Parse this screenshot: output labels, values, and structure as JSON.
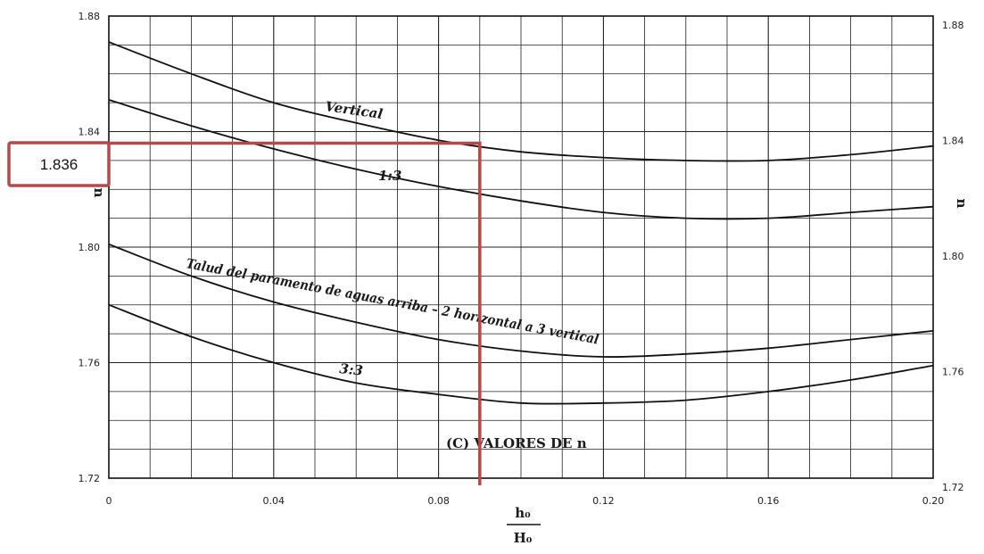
{
  "chart_data": {
    "type": "line",
    "title": "",
    "xlabel_num": "h₀",
    "xlabel_den": "H₀",
    "ylabel_left": "n",
    "ylabel_right": "n",
    "xlim": [
      0,
      0.2
    ],
    "ylim": [
      1.72,
      1.88
    ],
    "x_ticks": [
      "0",
      "0.04",
      "0.08",
      "0.12",
      "0.16",
      "0.20"
    ],
    "y_ticks_left": [
      "1.72",
      "1.76",
      "1.80",
      "1.84",
      "1.88"
    ],
    "y_ticks_right": [
      "1.72",
      "1.76",
      "1.80",
      "1.84",
      "1.88"
    ],
    "caption": "(C) VALORES DE n",
    "annotation_value": "1.836",
    "annotation_x": 0.09,
    "annotation_y": 1.836,
    "annotation_color": "#b5484a",
    "curve_labels": {
      "vertical": "Vertical",
      "s13": "1:3",
      "s23": "Talud del paramento de aguas arriba – 2 horizontal a 3 vertical",
      "s33": "3:3"
    },
    "series": [
      {
        "key": "vertical",
        "x": [
          0,
          0.02,
          0.04,
          0.06,
          0.08,
          0.1,
          0.12,
          0.14,
          0.16,
          0.18,
          0.2
        ],
        "y": [
          1.871,
          1.86,
          1.85,
          1.843,
          1.837,
          1.833,
          1.831,
          1.83,
          1.83,
          1.832,
          1.835
        ]
      },
      {
        "key": "s13",
        "x": [
          0,
          0.02,
          0.04,
          0.06,
          0.08,
          0.1,
          0.12,
          0.14,
          0.16,
          0.18,
          0.2
        ],
        "y": [
          1.851,
          1.842,
          1.834,
          1.827,
          1.821,
          1.816,
          1.812,
          1.81,
          1.81,
          1.812,
          1.814
        ]
      },
      {
        "key": "s23",
        "x": [
          0,
          0.02,
          0.04,
          0.06,
          0.08,
          0.1,
          0.12,
          0.14,
          0.16,
          0.18,
          0.2
        ],
        "y": [
          1.801,
          1.79,
          1.781,
          1.774,
          1.768,
          1.764,
          1.762,
          1.763,
          1.765,
          1.768,
          1.771
        ]
      },
      {
        "key": "s33",
        "x": [
          0,
          0.02,
          0.04,
          0.06,
          0.08,
          0.1,
          0.12,
          0.14,
          0.16,
          0.18,
          0.2
        ],
        "y": [
          1.78,
          1.769,
          1.76,
          1.753,
          1.749,
          1.746,
          1.746,
          1.747,
          1.75,
          1.754,
          1.759
        ]
      }
    ]
  }
}
